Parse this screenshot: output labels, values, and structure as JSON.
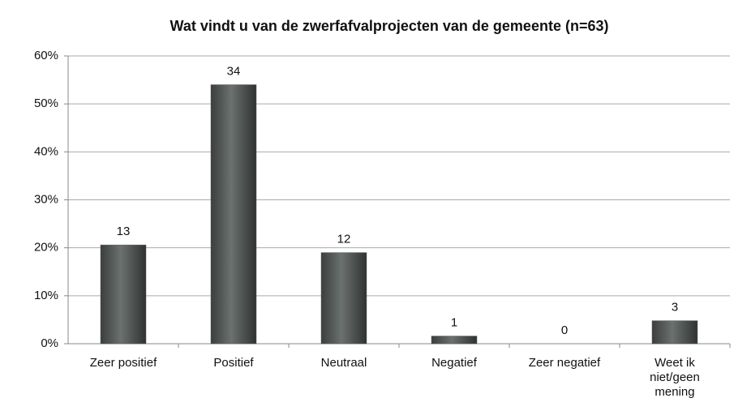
{
  "chart_data": {
    "type": "bar",
    "title": "Wat vindt u van de zwerfafvalprojecten van de gemeente (n=63)",
    "categories": [
      "Zeer positief",
      "Positief",
      "Neutraal",
      "Negatief",
      "Zeer negatief",
      "Weet ik niet/geen mening"
    ],
    "values": [
      20.6,
      54.0,
      19.0,
      1.6,
      0,
      4.8
    ],
    "counts": [
      13,
      34,
      12,
      1,
      0,
      3
    ],
    "color": "#5a5f5d",
    "ylim": [
      0,
      60
    ],
    "yticks": [
      {
        "value": 0,
        "label": "0%"
      },
      {
        "value": 10,
        "label": "10%"
      },
      {
        "value": 20,
        "label": "20%"
      },
      {
        "value": 30,
        "label": "30%"
      },
      {
        "value": 40,
        "label": "40%"
      },
      {
        "value": 50,
        "label": "50%"
      },
      {
        "value": 60,
        "label": "60%"
      }
    ],
    "grid": true
  }
}
